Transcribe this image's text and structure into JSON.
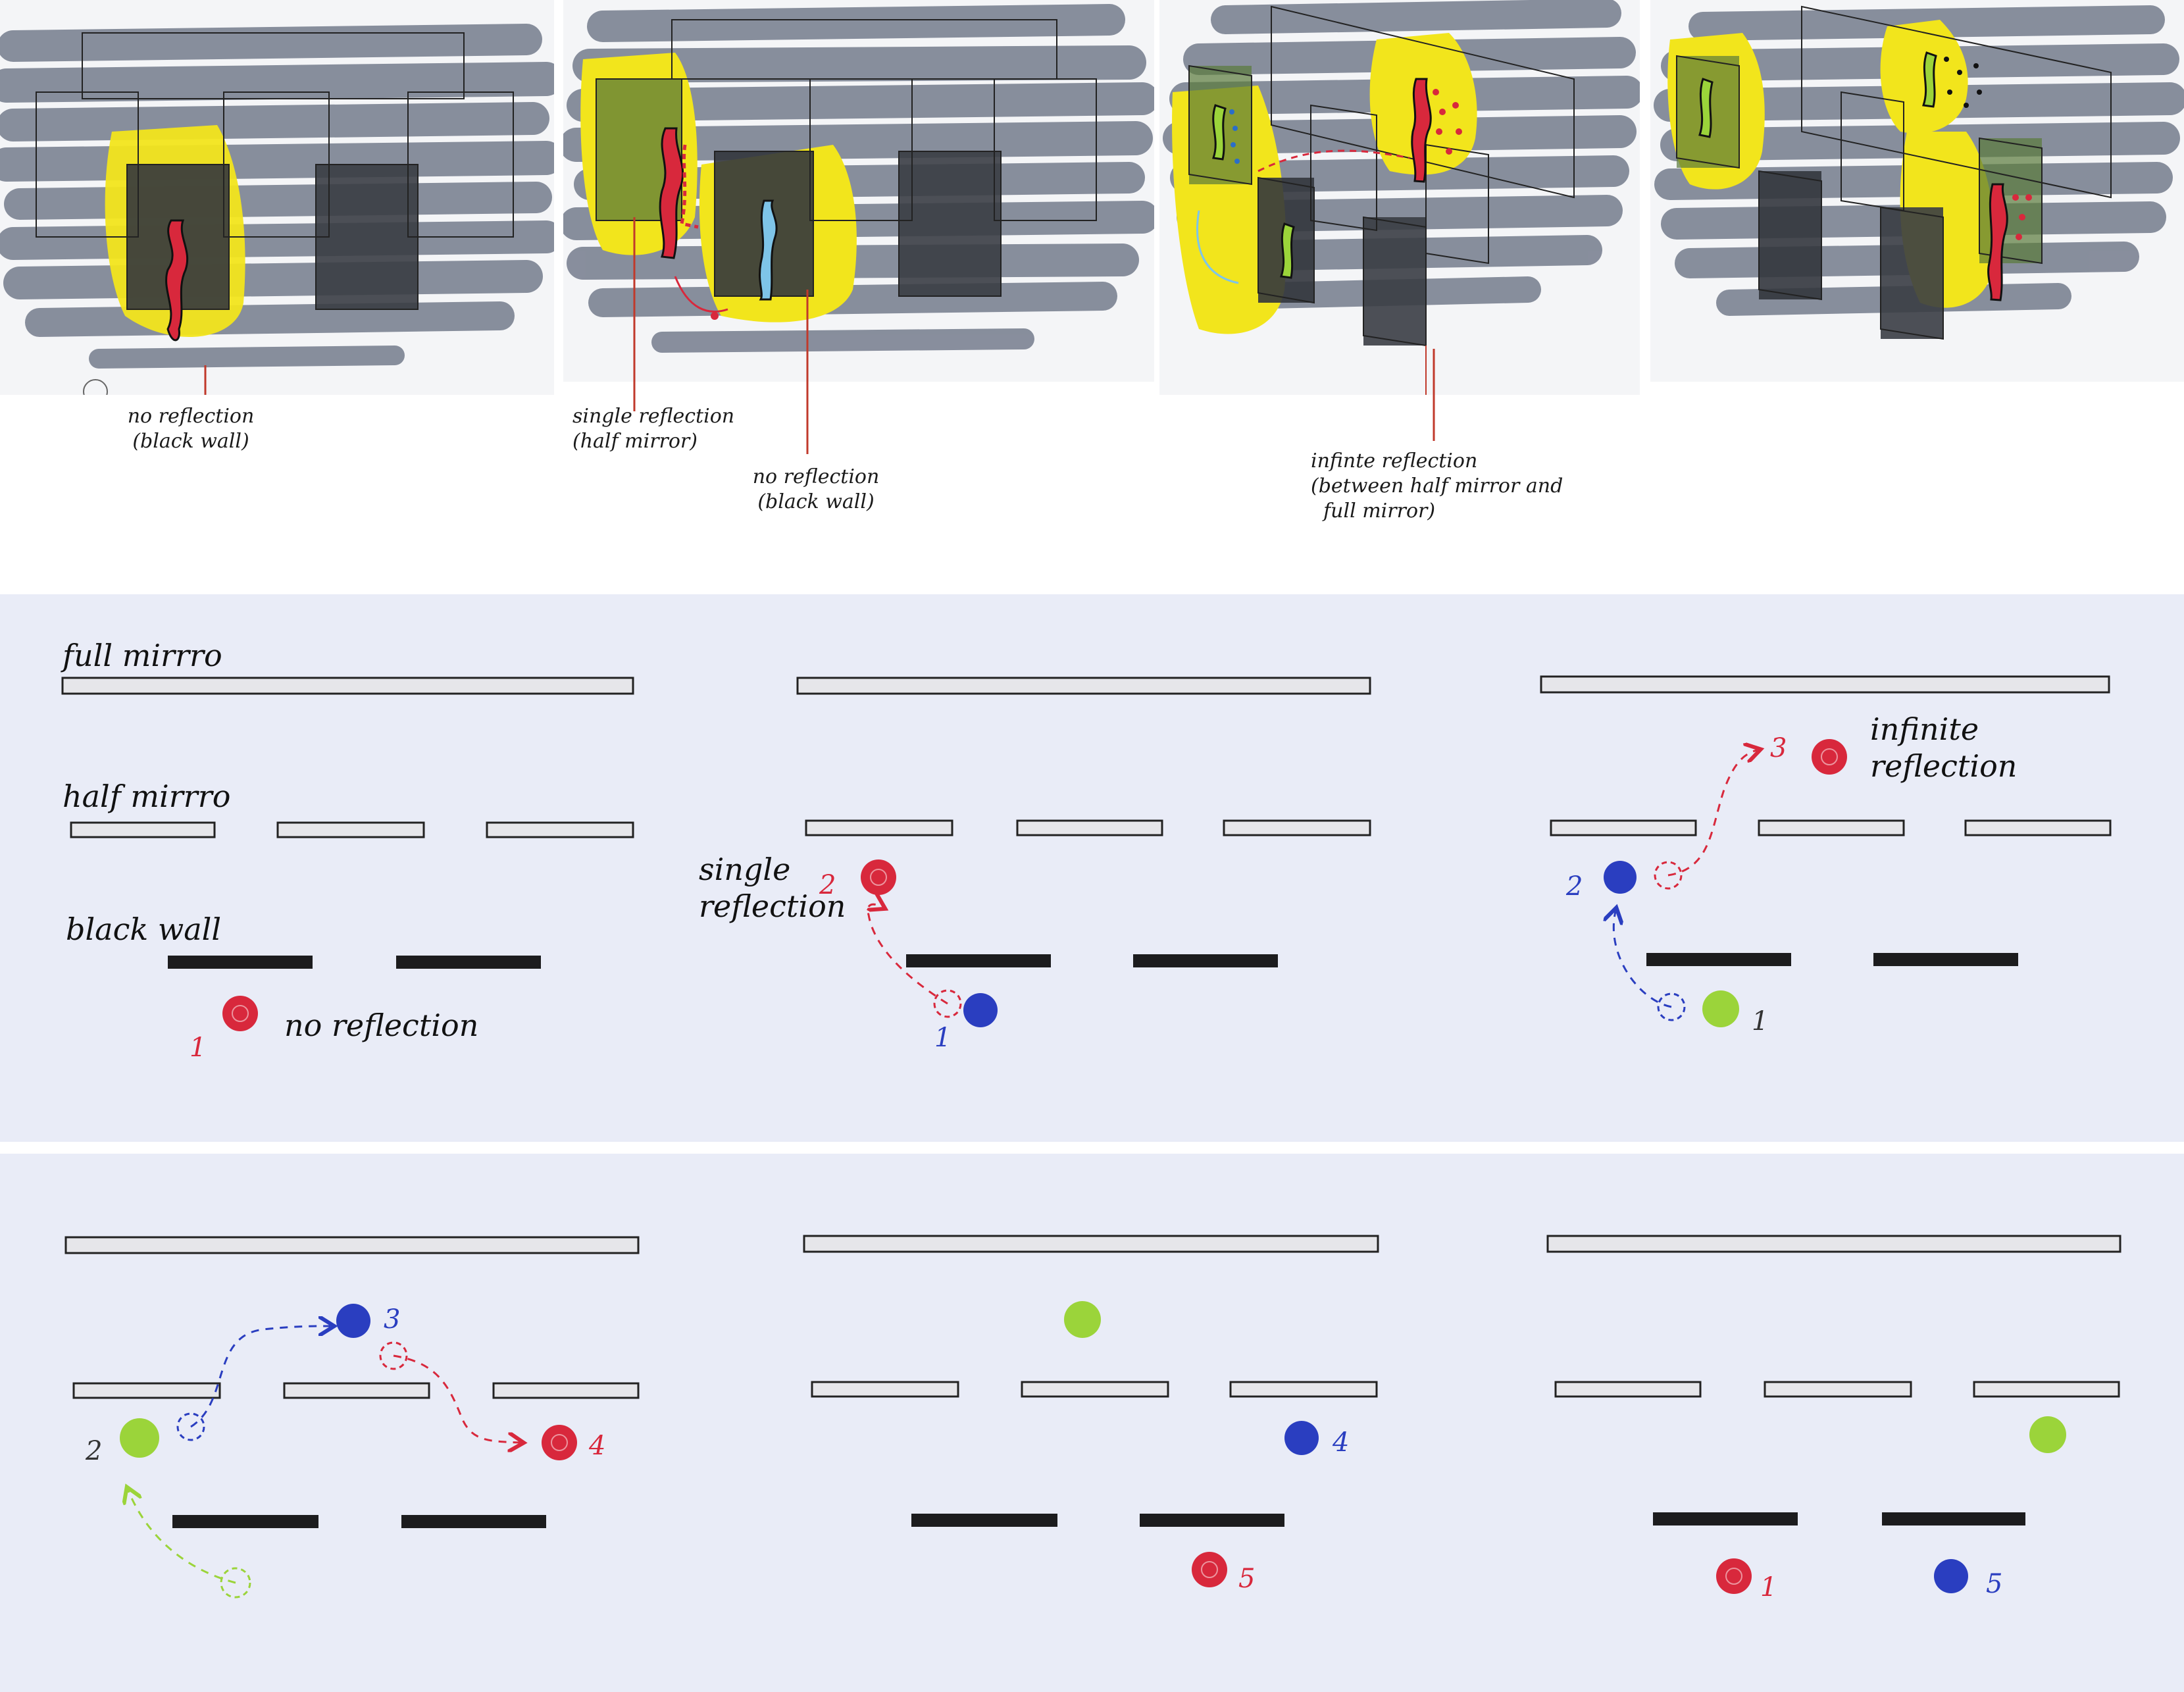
{
  "sketch_annotations": {
    "no_reflection_black_wall_1": "no reflection\n(black wall)",
    "single_reflection_half_mirror": "single reflection\n(half mirror)",
    "no_reflection_black_wall_2": "no reflection\n(black wall)",
    "infinite_reflection_note": "infinte reflection\n(between half mirror and\n  full mirror)"
  },
  "legend": {
    "full_mirror": "full mirrro",
    "half_mirror": "half mirrro",
    "black_wall": "black wall"
  },
  "diagram_labels": {
    "no_reflection": "no reflection",
    "single_reflection": "single\nreflection",
    "infinite_reflection": "infinite\nreflection"
  },
  "step_numbers": {
    "p1_red": "1",
    "p2_blue": "1",
    "p2_red": "2",
    "p3_green": "1",
    "p3_blue": "2",
    "p3_red": "3",
    "p4_green": "2",
    "p4_blue": "3",
    "p4_red": "4",
    "p5_blue": "4",
    "p5_red": "5",
    "p6_red": "1",
    "p6_blue": "5"
  },
  "colors": {
    "red": "#d8283c",
    "blue": "#2a3ec0",
    "green": "#9bd43a",
    "yellow": "#f2e51c",
    "marker_gray": "#6b7384",
    "black_panel": "#2b2e34",
    "mirror_fill": "#e6e6ea",
    "band_bg": "#e9ecf7"
  }
}
